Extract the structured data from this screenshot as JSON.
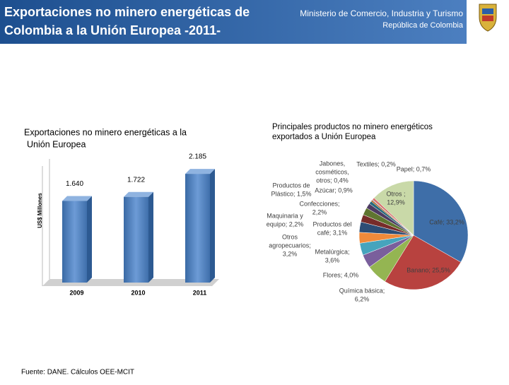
{
  "header": {
    "title_lines": [
      "Exportaciones no minero energéticas de",
      "Colombia a la Unión Europea -2011-"
    ],
    "ministry": "Ministerio de Comercio, Industria y Turismo",
    "country": "República de Colombia"
  },
  "footer": "Fuente: DANE. Cálculos OEE-MCIT",
  "chart_data": [
    {
      "type": "bar",
      "title_lines": [
        "Exportaciones no minero energéticas a la",
        "Unión Europea"
      ],
      "y_label": "US$ Millones",
      "categories": [
        "2009",
        "2010",
        "2011"
      ],
      "values": [
        1640,
        1722,
        2185
      ],
      "value_labels": [
        "1.640",
        "1.722",
        "2.185"
      ],
      "color": "#4f81bd",
      "ylim": [
        0,
        2300
      ]
    },
    {
      "type": "pie",
      "title_lines": [
        "Principales productos  no minero energéticos",
        "exportados a Unión Europea"
      ],
      "values": [
        33.2,
        25.5,
        6.2,
        4.0,
        3.6,
        3.2,
        3.1,
        2.2,
        2.2,
        1.5,
        0.9,
        0.4,
        0.2,
        0.7,
        12.9
      ],
      "value_labels": [
        [
          "Café; 33,2%"
        ],
        [
          "Banano; 25,5%"
        ],
        [
          "Química básica;",
          "6,2%"
        ],
        [
          "Flores; 4,0%"
        ],
        [
          "Metalúrgica;",
          "3,6%"
        ],
        [
          "Otros",
          "agropecuarios;",
          "3,2%"
        ],
        [
          "Productos del",
          "café; 3,1%"
        ],
        [
          "Maquinaria y",
          "equipo; 2,2%"
        ],
        [
          "Confecciones;",
          "2,2%"
        ],
        [
          "Productos de",
          "Plástico; 1,5%"
        ],
        [
          "Azúcar; 0,9%"
        ],
        [
          "Jabones,",
          "cosméticos,",
          "otros; 0,4%"
        ],
        [
          "Textiles; 0,2%"
        ],
        [
          "Papel; 0,7%"
        ],
        [
          "Otros ;",
          "12,9%"
        ]
      ],
      "colors": [
        "#3e6ea8",
        "#b8423f",
        "#94b552",
        "#7a5f9c",
        "#46a4bd",
        "#f08a3a",
        "#2c4d75",
        "#772c2a",
        "#5f7530",
        "#4d3b62",
        "#276a7c",
        "#b65708",
        "#729aca",
        "#d9726f",
        "#c9d9a8"
      ]
    }
  ]
}
